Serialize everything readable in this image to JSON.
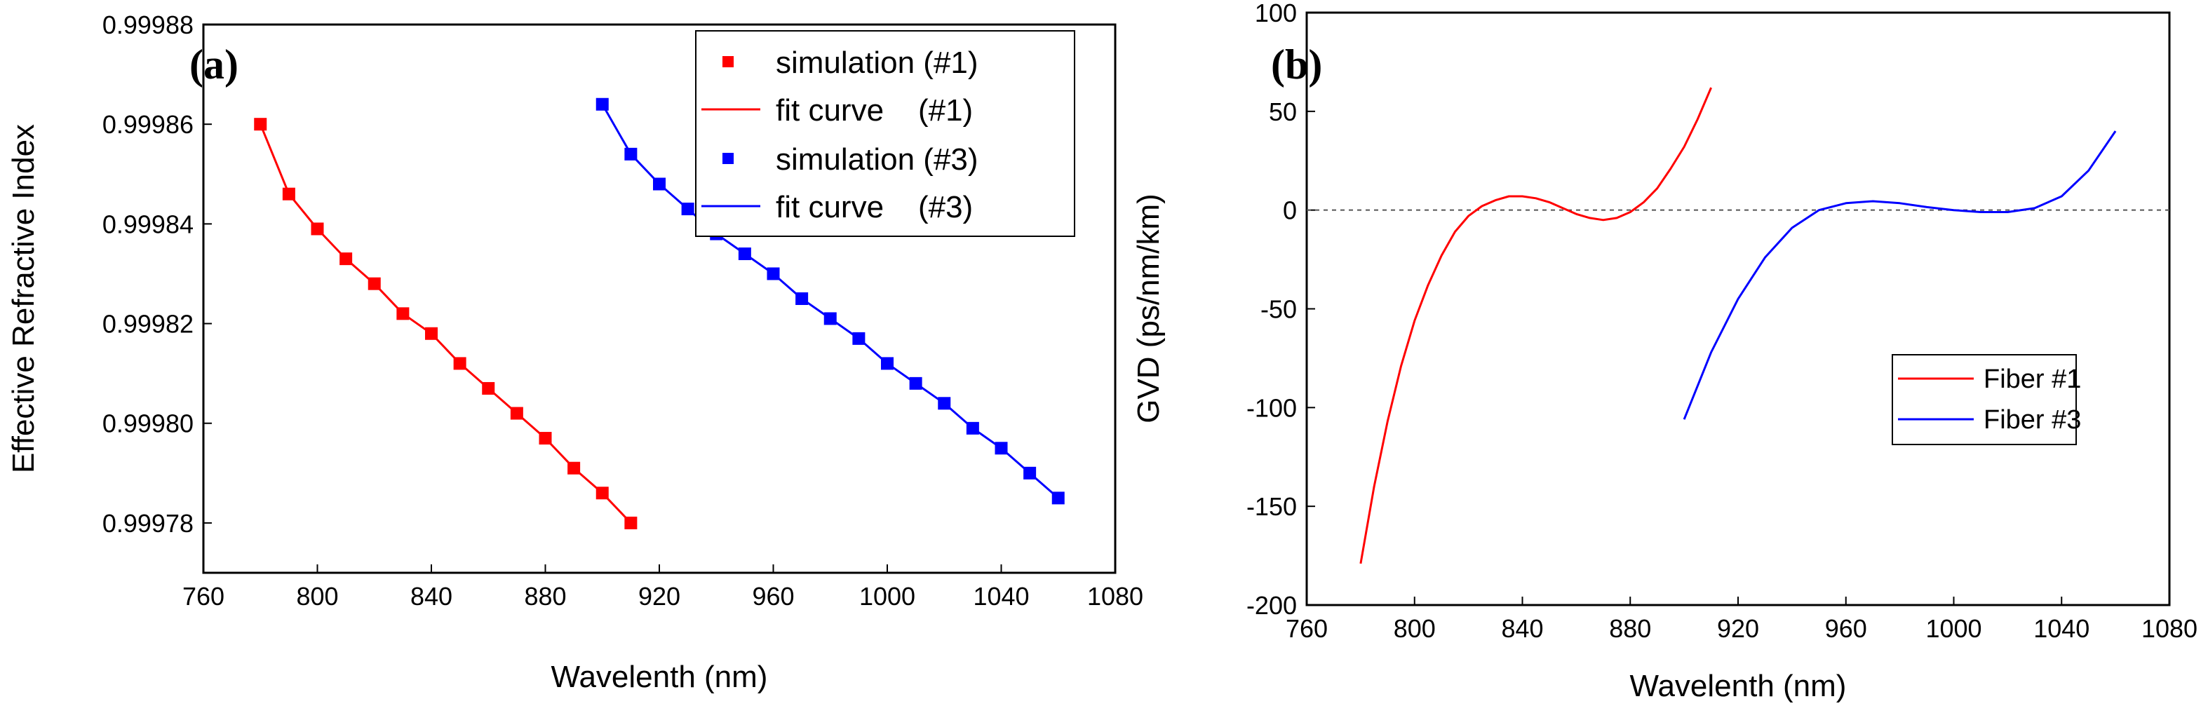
{
  "chart_data": [
    {
      "panel": "(a)",
      "type": "scatter",
      "xlabel": "Wavelenth (nm)",
      "ylabel": "Effective Refractive Index",
      "xlim": [
        760,
        1080
      ],
      "ylim": [
        0.99977,
        0.99988
      ],
      "xticks": [
        "760",
        "800",
        "840",
        "880",
        "920",
        "960",
        "1000",
        "1040",
        "1080"
      ],
      "yticks": [
        "0.99978",
        "0.99980",
        "0.99982",
        "0.99984",
        "0.99986",
        "0.99988"
      ],
      "legend": [
        "simulation (#1)",
        "fit curve    (#1)",
        "simulation (#3)",
        "fit curve    (#3)"
      ],
      "legend_position": "top-right",
      "colors": {
        "fiber1": "#ff0000",
        "fiber3": "#0000ff"
      },
      "series": [
        {
          "name": "simulation (#1)",
          "color": "#ff0000",
          "x": [
            780,
            790,
            800,
            810,
            820,
            830,
            840,
            850,
            860,
            870,
            880,
            890,
            900,
            910
          ],
          "y": [
            0.99986,
            0.999846,
            0.999839,
            0.999833,
            0.999828,
            0.999822,
            0.999818,
            0.999812,
            0.999807,
            0.999802,
            0.999797,
            0.999791,
            0.999786,
            0.99978
          ]
        },
        {
          "name": "simulation (#3)",
          "color": "#0000ff",
          "x": [
            900,
            910,
            920,
            930,
            940,
            950,
            960,
            970,
            980,
            990,
            1000,
            1010,
            1020,
            1030,
            1040,
            1050,
            1060
          ],
          "y": [
            0.999864,
            0.999854,
            0.999848,
            0.999843,
            0.999838,
            0.999834,
            0.99983,
            0.999825,
            0.999821,
            0.999817,
            0.999812,
            0.999808,
            0.999804,
            0.999799,
            0.999795,
            0.99979,
            0.999785
          ]
        }
      ]
    },
    {
      "panel": "(b)",
      "type": "line",
      "xlabel": "Wavelenth (nm)",
      "ylabel": "GVD (ps/nm/km)",
      "xlim": [
        760,
        1080
      ],
      "ylim": [
        -200,
        100
      ],
      "xticks": [
        "760",
        "800",
        "840",
        "880",
        "920",
        "960",
        "1000",
        "1040",
        "1080"
      ],
      "yticks": [
        "-200",
        "-150",
        "-100",
        "-50",
        "0",
        "50",
        "100"
      ],
      "zero_line": true,
      "legend": [
        "Fiber #1",
        "Fiber #3"
      ],
      "legend_position": "bottom-right",
      "series": [
        {
          "name": "Fiber #1",
          "color": "#ff0000",
          "x": [
            780,
            785,
            790,
            795,
            800,
            805,
            810,
            815,
            820,
            825,
            830,
            835,
            840,
            845,
            850,
            855,
            860,
            865,
            870,
            875,
            880,
            885,
            890,
            895,
            900,
            905,
            910
          ],
          "y": [
            -179,
            -140,
            -107,
            -79,
            -56,
            -38,
            -23,
            -11,
            -3,
            2,
            5,
            7,
            7,
            6,
            4,
            1,
            -2,
            -4,
            -5,
            -4,
            -1,
            4,
            11,
            21,
            32,
            46,
            62
          ]
        },
        {
          "name": "Fiber #3",
          "color": "#0000ff",
          "x": [
            900,
            910,
            920,
            930,
            940,
            950,
            960,
            970,
            980,
            990,
            1000,
            1010,
            1020,
            1030,
            1040,
            1050,
            1060
          ],
          "y": [
            -106,
            -72,
            -45,
            -24,
            -9,
            0,
            3.5,
            4.5,
            3.5,
            1.5,
            0,
            -1,
            -1,
            1,
            7,
            20,
            40
          ]
        }
      ]
    }
  ]
}
